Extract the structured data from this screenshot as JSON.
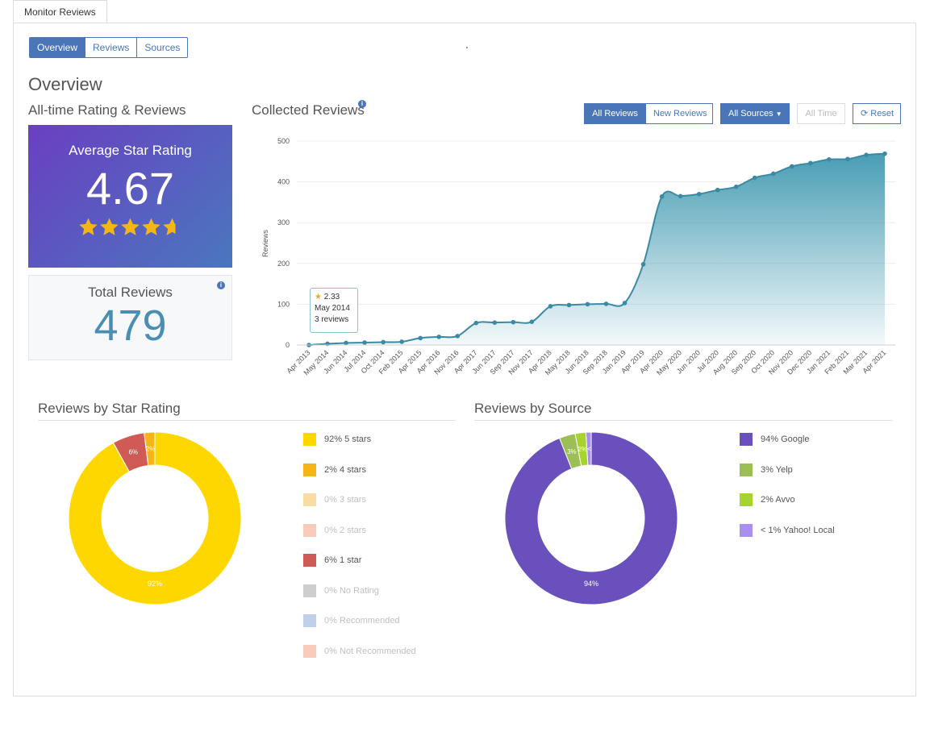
{
  "page_tab": "Monitor Reviews",
  "view_tabs": [
    {
      "label": "Overview",
      "active": true
    },
    {
      "label": "Reviews",
      "active": false
    },
    {
      "label": "Sources",
      "active": false
    }
  ],
  "page_title": "Overview",
  "rating_section": {
    "title": "All-time Rating & Reviews",
    "avg_label": "Average Star Rating",
    "avg_value": "4.67",
    "stars_filled": 4.67,
    "total_label": "Total Reviews",
    "total_value": "479"
  },
  "collected": {
    "title": "Collected Reviews",
    "buttons": {
      "all_reviews": "All Reviews",
      "new_reviews": "New Reviews",
      "all_sources": "All Sources",
      "all_time": "All Time",
      "reset": "Reset"
    },
    "tooltip": {
      "rating": "2.33",
      "date": "May 2014",
      "count": "3 reviews"
    }
  },
  "star_section": {
    "title": "Reviews by Star Rating"
  },
  "source_section": {
    "title": "Reviews by Source"
  },
  "colors": {
    "accent": "#4a76b8",
    "area": "#3f98b0",
    "five": "#ffd700",
    "four": "#f5b517",
    "three": "#f7cf86",
    "two": "#f7b9a6",
    "one": "#cf5b54",
    "norating": "#bdbdbd",
    "recommended": "#a9c0e0",
    "notrecommended": "#f7b9a6",
    "google": "#6a50bd",
    "yelp": "#9bbf55",
    "avvo": "#a7d42c",
    "yahoo": "#a98ff0"
  },
  "chart_data": [
    {
      "type": "area",
      "title": "Collected Reviews",
      "ylabel": "Reviews",
      "ylim": [
        0,
        500
      ],
      "yticks": [
        0,
        100,
        200,
        300,
        400,
        500
      ],
      "categories": [
        "Apr 2013",
        "May 2014",
        "Jun 2014",
        "Jul 2014",
        "Oct 2014",
        "Feb 2015",
        "Apr 2015",
        "Apr 2016",
        "Nov 2016",
        "Apr 2017",
        "Jun 2017",
        "Sep 2017",
        "Nov 2017",
        "Apr 2018",
        "May 2018",
        "Jun 2018",
        "Sep 2018",
        "Jan 2019",
        "Apr 2019",
        "Apr 2020",
        "May 2020",
        "Jun 2020",
        "Jul 2020",
        "Aug 2020",
        "Sep 2020",
        "Oct 2020",
        "Nov 2020",
        "Dec 2020",
        "Jan 2021",
        "Feb 2021",
        "Mar 2021",
        "Apr 2021"
      ],
      "values": [
        0,
        3,
        5,
        6,
        7,
        8,
        17,
        20,
        22,
        54,
        55,
        56,
        57,
        95,
        98,
        100,
        101,
        103,
        198,
        364,
        365,
        370,
        380,
        388,
        410,
        420,
        438,
        446,
        455,
        456,
        466,
        469
      ],
      "grid": true
    },
    {
      "type": "pie",
      "title": "Reviews by Star Rating",
      "legend": [
        {
          "label": "92% 5 stars",
          "value": 92,
          "color": "#ffd700",
          "muted": false
        },
        {
          "label": "2% 4 stars",
          "value": 2,
          "color": "#f5b517",
          "muted": false
        },
        {
          "label": "0% 3 stars",
          "value": 0,
          "color": "#f7cf86",
          "muted": true
        },
        {
          "label": "0% 2 stars",
          "value": 0,
          "color": "#f7b9a6",
          "muted": true
        },
        {
          "label": "6% 1 star",
          "value": 6,
          "color": "#cf5b54",
          "muted": false
        },
        {
          "label": "0% No Rating",
          "value": 0,
          "color": "#bdbdbd",
          "muted": true
        },
        {
          "label": "0% Recommended",
          "value": 0,
          "color": "#a9c0e0",
          "muted": true
        },
        {
          "label": "0% Not Recommended",
          "value": 0,
          "color": "#f7b9a6",
          "muted": true
        }
      ],
      "slice_labels": [
        "92%",
        "2%",
        "6%"
      ]
    },
    {
      "type": "pie",
      "title": "Reviews by Source",
      "legend": [
        {
          "label": "94% Google",
          "value": 94,
          "color": "#6a50bd",
          "muted": false
        },
        {
          "label": "3% Yelp",
          "value": 3,
          "color": "#9bbf55",
          "muted": false
        },
        {
          "label": "2% Avvo",
          "value": 2,
          "color": "#a7d42c",
          "muted": false
        },
        {
          "label": "< 1% Yahoo! Local",
          "value": 1,
          "color": "#a98ff0",
          "muted": false
        }
      ],
      "slice_labels": [
        "94%",
        "3%",
        "2%"
      ]
    }
  ]
}
